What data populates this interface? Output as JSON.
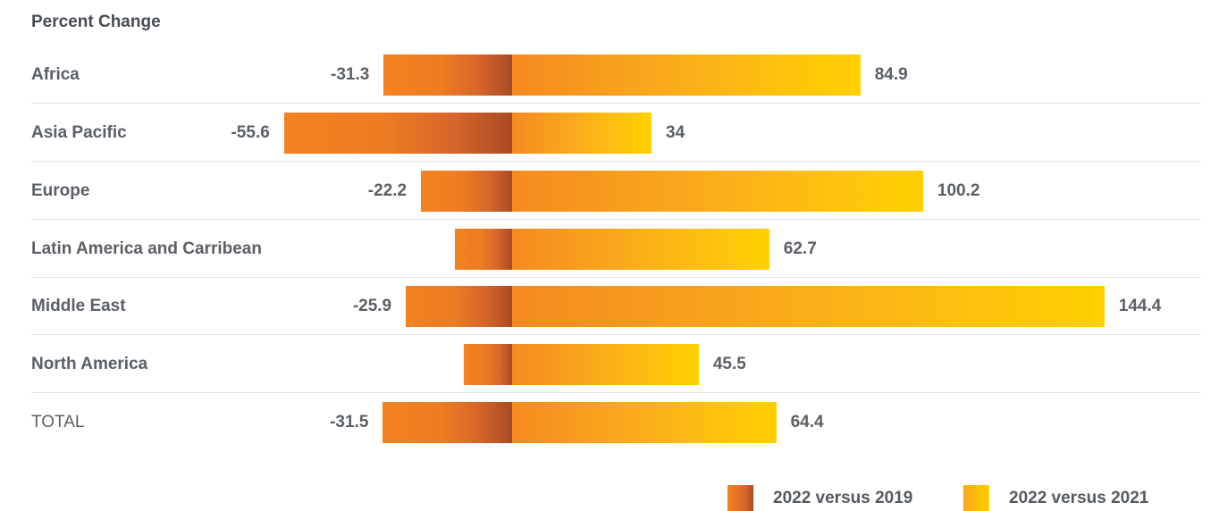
{
  "chart_data": {
    "type": "bar",
    "title": "Percent Change",
    "categories": [
      "Africa",
      "Asia Pacific",
      "Europe",
      "Latin America and Carribean",
      "Middle East",
      "North America",
      "TOTAL"
    ],
    "series": [
      {
        "name": "2022 versus 2019",
        "values": [
          -31.3,
          -55.6,
          -22.2,
          -14.0,
          -25.9,
          -11.7,
          -31.5
        ],
        "labels": [
          "-31.3",
          "-55.6",
          "-22.2",
          "",
          "-25.9",
          "",
          "-31.5"
        ],
        "color": "#d6652a"
      },
      {
        "name": "2022 versus 2021",
        "values": [
          84.9,
          34,
          100.2,
          62.7,
          144.4,
          45.5,
          64.4
        ],
        "labels": [
          "84.9",
          "34",
          "100.2",
          "62.7",
          "144.4",
          "45.5",
          "64.4"
        ],
        "color": "#ffc20e"
      }
    ],
    "xlim": [
      -60,
      150
    ],
    "orientation": "horizontal",
    "stacked_diverging": true,
    "legend": "bottom-right",
    "grid": false
  }
}
